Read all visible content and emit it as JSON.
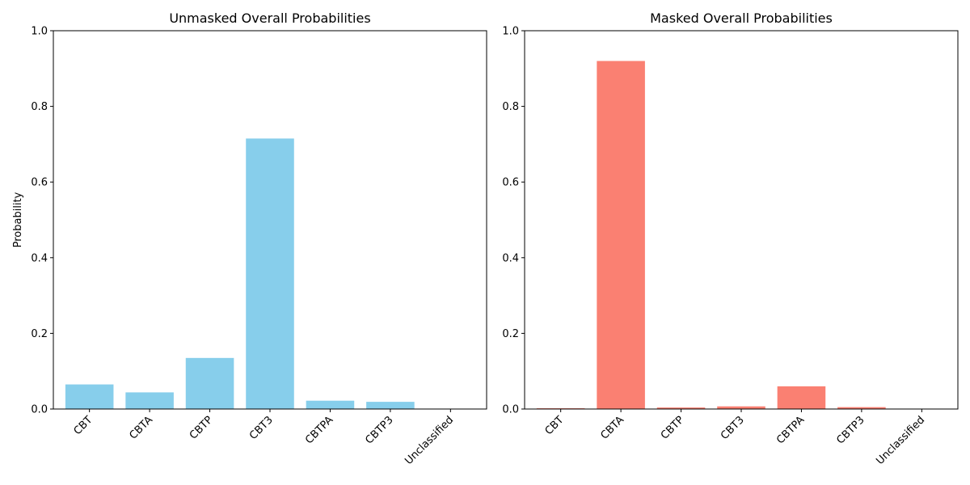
{
  "chart_data": [
    {
      "type": "bar",
      "title": "Unmasked Overall Probabilities",
      "xlabel": "",
      "ylabel": "Probability",
      "ylim": [
        0,
        1.0
      ],
      "yticks": [
        "0.0",
        "0.2",
        "0.4",
        "0.6",
        "0.8",
        "1.0"
      ],
      "categories": [
        "CBT",
        "CBTA",
        "CBTP",
        "CBT3",
        "CBTPA",
        "CBTP3",
        "Unclassified"
      ],
      "values": [
        0.065,
        0.044,
        0.135,
        0.715,
        0.022,
        0.019,
        0.0
      ],
      "color": "#87ceeb"
    },
    {
      "type": "bar",
      "title": "Masked Overall Probabilities",
      "xlabel": "",
      "ylabel": "",
      "ylim": [
        0,
        1.0
      ],
      "yticks": [
        "0.0",
        "0.2",
        "0.4",
        "0.6",
        "0.8",
        "1.0"
      ],
      "categories": [
        "CBT",
        "CBTA",
        "CBTP",
        "CBT3",
        "CBTPA",
        "CBTP3",
        "Unclassified"
      ],
      "values": [
        0.002,
        0.92,
        0.004,
        0.007,
        0.06,
        0.005,
        0.0
      ],
      "color": "#fa8072"
    }
  ]
}
